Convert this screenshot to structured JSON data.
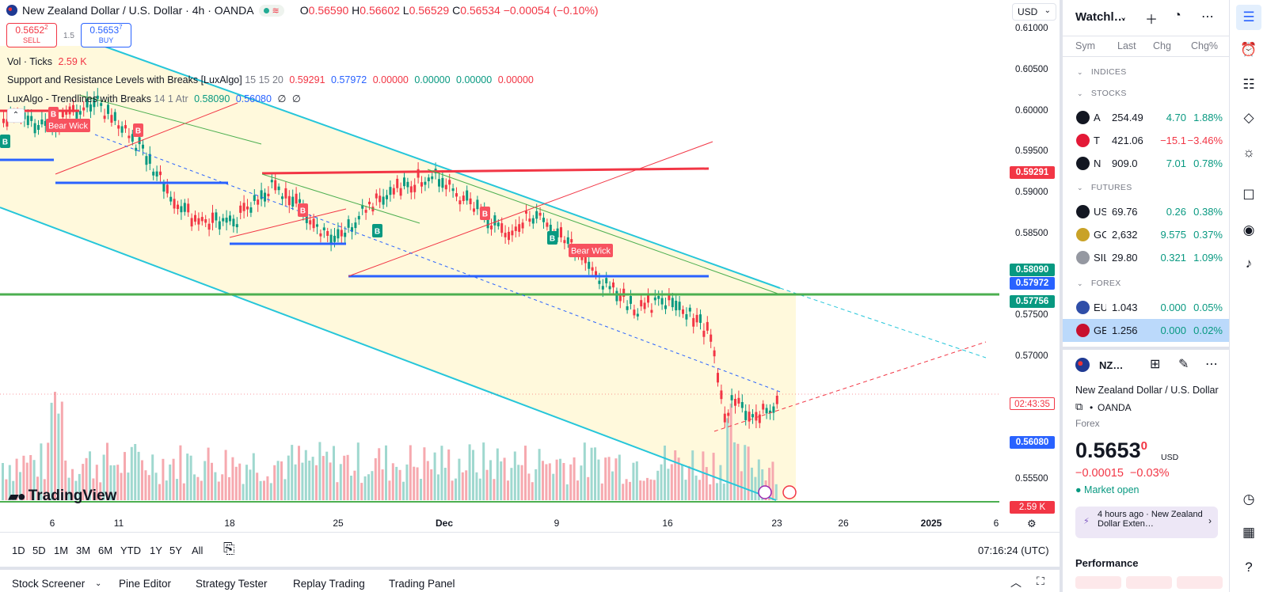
{
  "symbol": {
    "title": "New Zealand Dollar / U.S. Dollar · 4h · OANDA",
    "ohlc": {
      "o_label": "O",
      "o": "0.56590",
      "h_label": "H",
      "h": "0.56602",
      "l_label": "L",
      "l": "0.56529",
      "c_label": "C",
      "c": "0.56534",
      "change": "−0.00054 (−0.10%)"
    }
  },
  "trade": {
    "sell_price": "0.5652",
    "sell_sup": "2",
    "sell_label": "SELL",
    "spread": "1.5",
    "buy_price": "0.5653",
    "buy_sup": "7",
    "buy_label": "BUY"
  },
  "indicators": {
    "vol_name": "Vol · Ticks",
    "vol_value": "2.59 K",
    "sr_name": "Support and Resistance Levels with Breaks [LuxAlgo]",
    "sr_params": "15 15 20",
    "sr_v1": "0.59291",
    "sr_v2": "0.57972",
    "sr_v3": "0.00000",
    "sr_v4": "0.00000",
    "sr_v5": "0.00000",
    "sr_v6": "0.00000",
    "tl_name": "LuxAlgo - Trendlines with Breaks",
    "tl_params": "14 1 Atr",
    "tl_v1": "0.58090",
    "tl_v2": "0.56080",
    "tl_v3": "∅",
    "tl_v4": "∅"
  },
  "chart_annotations": {
    "bear_wick_1": "Bear Wick",
    "bear_wick_2": "Bear Wick",
    "break_up_label": "B",
    "break_down_label": "B"
  },
  "currency": "USD",
  "price_axis": {
    "ticks": [
      "0.61000",
      "0.60500",
      "0.60000",
      "0.59500",
      "0.59000",
      "0.58500",
      "0.57500",
      "0.57000",
      "0.55500"
    ],
    "tag_resistance": "0.59291",
    "tag_trend_upper": "0.58090",
    "tag_support": "0.57972",
    "tag_level": "0.57756",
    "tag_countdown": "02:43:35",
    "tag_trend_lower": "0.56080",
    "tag_volume": "2.59 K",
    "colors": {
      "red": "#f23645",
      "green": "#089981",
      "blue": "#2962ff",
      "level": "#4caf50"
    }
  },
  "time_axis": {
    "labels": [
      "6",
      "11",
      "18",
      "25",
      "Dec",
      "9",
      "16",
      "23",
      "26",
      "2025",
      "6"
    ]
  },
  "logo": "TradingView",
  "periods": [
    "1D",
    "5D",
    "1M",
    "3M",
    "6M",
    "YTD",
    "1Y",
    "5Y",
    "All"
  ],
  "clock": "07:16:24 (UTC)",
  "bottom_tabs": [
    "Stock Screener",
    "Pine Editor",
    "Strategy Tester",
    "Replay Trading",
    "Trading Panel"
  ],
  "watchlist": {
    "title": "Watchl…",
    "columns": {
      "sym": "Sym",
      "last": "Last",
      "chg": "Chg",
      "chgp": "Chg%"
    },
    "sections": [
      "INDICES",
      "STOCKS",
      "FUTURES",
      "FOREX"
    ],
    "stocks": [
      {
        "sym": "A",
        "last": "254.49",
        "chg": "4.70",
        "chgp": "1.88%",
        "icon": "apple-icon",
        "icon_color": "#131722"
      },
      {
        "sym": "T",
        "last": "421.06",
        "chg": "−15.1",
        "chgp": "−3.46%",
        "icon": "tesla-icon",
        "icon_color": "#e31937"
      },
      {
        "sym": "N",
        "last": "909.0",
        "chg": "7.01",
        "chgp": "0.78%",
        "icon": "netflix-icon",
        "icon_color": "#131722"
      }
    ],
    "futures": [
      {
        "sym": "US",
        "last": "69.76",
        "chg": "0.26",
        "chgp": "0.38%",
        "icon": "oil-drop-icon",
        "icon_color": "#131722"
      },
      {
        "sym": "GC",
        "last": "2,632",
        "chg": "9.575",
        "chgp": "0.37%",
        "icon": "gold-icon",
        "icon_color": "#c9a227"
      },
      {
        "sym": "SIL",
        "last": "29.80",
        "chg": "0.321",
        "chgp": "1.09%",
        "icon": "silver-icon",
        "icon_color": "#9598a1"
      }
    ],
    "forex": [
      {
        "sym": "EU",
        "last": "1.043",
        "chg": "0.000",
        "chgp": "0.05%",
        "icon": "eu-flag-icon",
        "icon_color": "#2f4ea8"
      },
      {
        "sym": "GE",
        "last": "1.256",
        "chg": "0.000",
        "chgp": "0.02%",
        "icon": "gb-flag-icon",
        "icon_color": "#c8102e"
      }
    ]
  },
  "details": {
    "symbol": "NZ…",
    "name": "New Zealand Dollar / U.S. Dollar",
    "exchange": "OANDA",
    "type": "Forex",
    "price_main": "0.5653",
    "price_sup": "0",
    "currency": "USD",
    "change": "−0.00015",
    "change_pct": "−0.03%",
    "market_status": "Market open",
    "news": "4 hours ago · New Zealand Dollar Exten…",
    "performance_title": "Performance"
  }
}
